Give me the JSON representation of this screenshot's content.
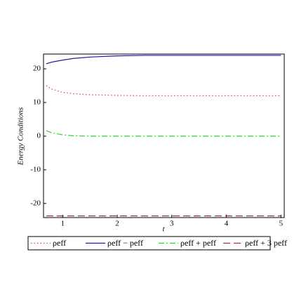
{
  "chart_data": {
    "type": "line",
    "x_label": "t",
    "y_label": "Energy Conditions",
    "x": [
      0.7,
      0.8,
      1,
      1.2,
      1.5,
      2,
      2.5,
      3,
      4,
      5
    ],
    "series": [
      {
        "name": "ρeff",
        "color": "#e03a3a",
        "dash": "dot",
        "values": [
          15,
          14,
          13,
          12.6,
          12.3,
          12.1,
          12,
          12,
          12,
          12
        ]
      },
      {
        "name": "ρeff − peff",
        "color": "#1c1ca8",
        "dash": "solid",
        "values": [
          21.5,
          22,
          22.6,
          23.1,
          23.5,
          23.85,
          24,
          24,
          24,
          24
        ]
      },
      {
        "name": "ρeff + peff",
        "color": "#22d822",
        "dash": "dashdot",
        "values": [
          1.6,
          1.0,
          0.4,
          0.1,
          0,
          0,
          0,
          0,
          0,
          0
        ]
      },
      {
        "name": "ρeff + 3 peff",
        "color": "#a83232",
        "dash": "dash",
        "values": [
          -23.7,
          -23.7,
          -23.7,
          -23.7,
          -23.7,
          -23.7,
          -23.7,
          -23.7,
          -23.7,
          -23.7
        ]
      }
    ],
    "xlim": [
      0.65,
      5.06
    ],
    "ylim": [
      -24.2,
      24.4
    ],
    "xticks": [
      1,
      2,
      3,
      4,
      5
    ],
    "yticks": [
      -20,
      -10,
      0,
      10,
      20
    ]
  }
}
